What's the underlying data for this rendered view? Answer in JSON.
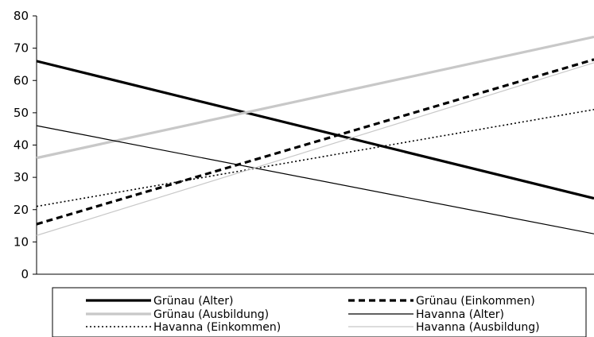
{
  "chart_data": {
    "type": "line",
    "title": "",
    "xlabel": "",
    "ylabel": "",
    "ylim": [
      0,
      80
    ],
    "yticks": [
      0,
      10,
      20,
      30,
      40,
      50,
      60,
      70,
      80
    ],
    "x": [
      0,
      1
    ],
    "grid": false,
    "legend_position": "bottom",
    "series": [
      {
        "name": "Grünau (Alter)",
        "values": [
          66,
          23.5
        ],
        "color": "#000000",
        "style": "solid-thick"
      },
      {
        "name": "Grünau (Einkommen)",
        "values": [
          15.5,
          66.5
        ],
        "color": "#000000",
        "style": "dashed-thick"
      },
      {
        "name": "Grünau (Ausbildung)",
        "values": [
          36,
          73.5
        ],
        "color": "#c8c8c8",
        "style": "solid-thick"
      },
      {
        "name": "Havanna (Alter)",
        "values": [
          46,
          12.5
        ],
        "color": "#000000",
        "style": "solid-thin"
      },
      {
        "name": "Havanna (Einkommen)",
        "values": [
          21,
          51
        ],
        "color": "#000000",
        "style": "dotted"
      },
      {
        "name": "Havanna (Ausbildung)",
        "values": [
          12,
          65.5
        ],
        "color": "#c8c8c8",
        "style": "solid-thin"
      }
    ]
  }
}
